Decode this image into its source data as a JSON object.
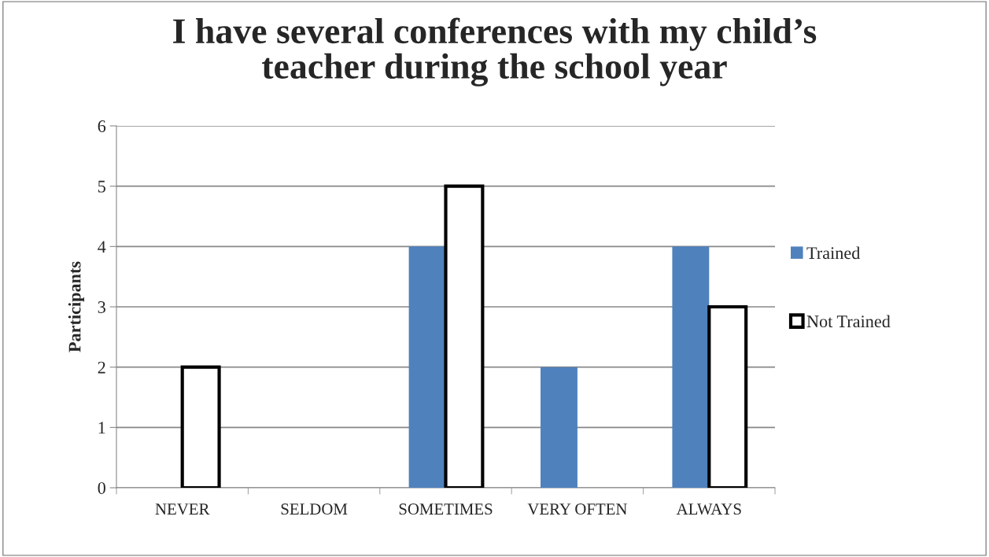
{
  "chart_data": {
    "type": "bar",
    "title": "I have several conferences with my child’s teacher during the school year",
    "ylabel": "Participants",
    "categories": [
      "NEVER",
      "SELDOM",
      "SOMETIMES",
      "VERY OFTEN",
      "ALWAYS"
    ],
    "series": [
      {
        "name": "Trained",
        "color": "#4f81bd",
        "values": [
          0,
          0,
          4,
          2,
          4
        ]
      },
      {
        "name": "Not Trained",
        "color": "#ffffff",
        "values": [
          2,
          0,
          5,
          0,
          3
        ]
      }
    ],
    "ylim": [
      0,
      6
    ],
    "yticks": [
      0,
      1,
      2,
      3,
      4,
      5,
      6
    ],
    "grid": "y",
    "legend": "right"
  }
}
